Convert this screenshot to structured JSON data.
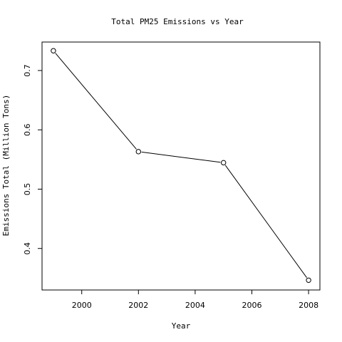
{
  "chart_data": {
    "type": "line",
    "title": "Total PM25 Emissions vs Year",
    "xlabel": "Year",
    "ylabel": "Emissions Total (Million Tons)",
    "x": [
      1999,
      2002,
      2005,
      2008
    ],
    "series": [
      {
        "values": [
          0.7333,
          0.5632,
          0.5446,
          0.3465
        ]
      }
    ],
    "xlim": [
      1998.6,
      2008.4
    ],
    "ylim": [
      0.33,
      0.748
    ],
    "x_ticks": [
      2000,
      2002,
      2004,
      2006,
      2008
    ],
    "y_ticks": [
      0.4,
      0.5,
      0.6,
      0.7
    ],
    "y_tick_labels": [
      "0.4",
      "0.5",
      "0.6",
      "0.7"
    ],
    "grid": false,
    "markers": "open-circle",
    "line_color": "#000000"
  }
}
